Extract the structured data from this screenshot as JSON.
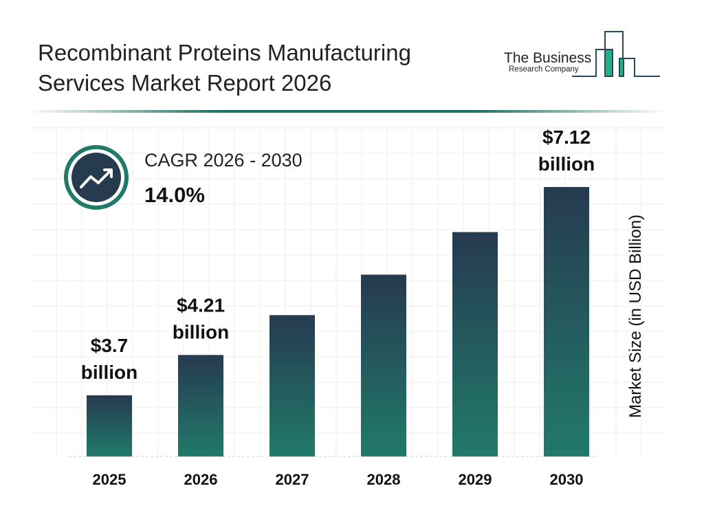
{
  "header": {
    "title_line1": "Recombinant Proteins Manufacturing",
    "title_line2": "Services Market Report 2026"
  },
  "logo": {
    "line1": "The Business",
    "line2": "Research Company"
  },
  "cagr": {
    "label": "CAGR 2026 - 2030",
    "value": "14.0%",
    "icon": "trend-up-arrow-icon"
  },
  "colors": {
    "bar_top": "#263a50",
    "bar_bottom": "#217a6a",
    "accent": "#1f7a68"
  },
  "chart_data": {
    "type": "bar",
    "title": "",
    "xlabel": "",
    "ylabel": "Market Size (in USD Billion)",
    "categories": [
      "2025",
      "2026",
      "2027",
      "2028",
      "2029",
      "2030"
    ],
    "values": [
      3.7,
      4.21,
      4.8,
      5.47,
      6.24,
      7.12
    ],
    "data_labels": [
      {
        "line1": "$3.7",
        "line2": "billion"
      },
      {
        "line1": "$4.21",
        "line2": "billion"
      },
      null,
      null,
      null,
      {
        "line1": "$7.12",
        "line2": "billion"
      }
    ],
    "grid": true
  }
}
